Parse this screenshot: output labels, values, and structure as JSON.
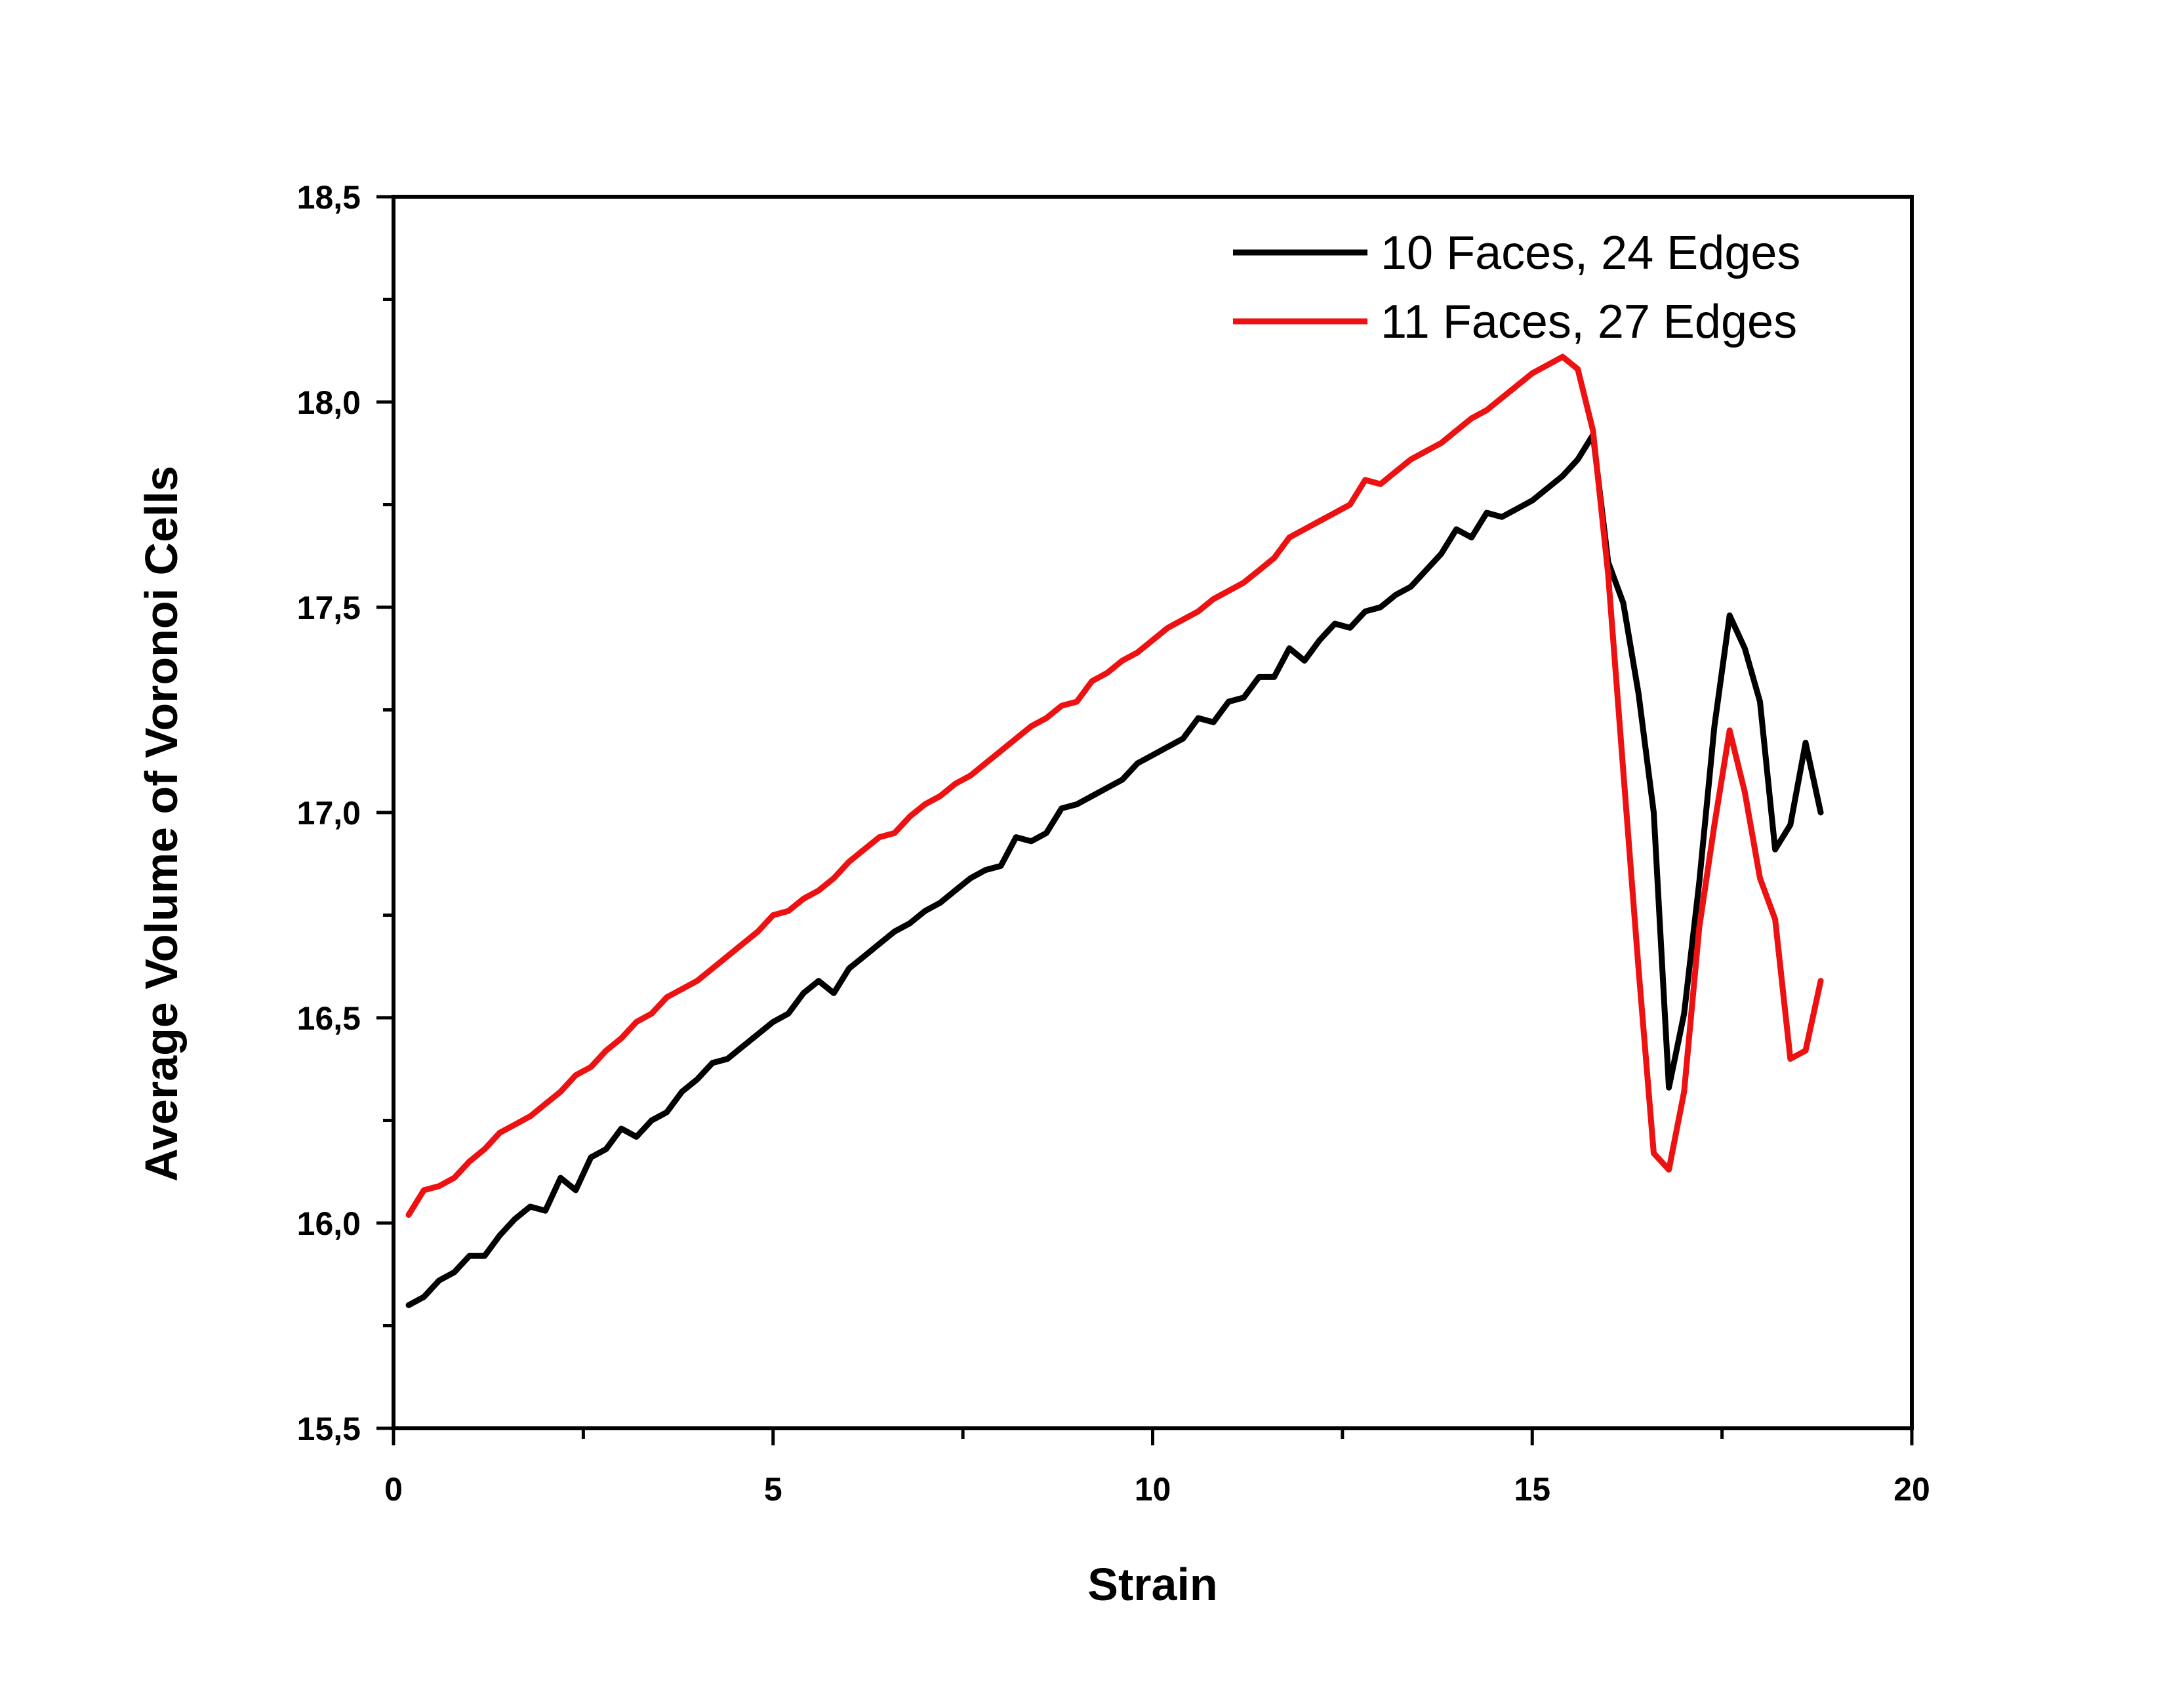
{
  "chart_data": {
    "type": "line",
    "title": "",
    "xlabel": "Strain",
    "ylabel": "Average Volume of Voronoi Cells",
    "xlim": [
      0,
      20
    ],
    "ylim": [
      15.5,
      18.5
    ],
    "xticks": [
      0,
      5,
      10,
      15,
      20
    ],
    "xtick_labels": [
      "0",
      "5",
      "10",
      "15",
      "20"
    ],
    "yticks": [
      15.5,
      16.0,
      16.5,
      17.0,
      17.5,
      18.0,
      18.5
    ],
    "ytick_labels": [
      "15,5",
      "16,0",
      "16,5",
      "17,0",
      "17,5",
      "18,0",
      "18,5"
    ],
    "grid": false,
    "legend_position": "top-right",
    "series": [
      {
        "name": "10 Faces, 24 Edges",
        "color": "#000000",
        "x": [
          0.2,
          0.4,
          0.6,
          0.8,
          1.0,
          1.2,
          1.4,
          1.6,
          1.8,
          2.0,
          2.2,
          2.4,
          2.6,
          2.8,
          3.0,
          3.2,
          3.4,
          3.6,
          3.8,
          4.0,
          4.2,
          4.4,
          4.6,
          4.8,
          5.0,
          5.2,
          5.4,
          5.6,
          5.8,
          6.0,
          6.2,
          6.4,
          6.6,
          6.8,
          7.0,
          7.2,
          7.4,
          7.6,
          7.8,
          8.0,
          8.2,
          8.4,
          8.6,
          8.8,
          9.0,
          9.2,
          9.4,
          9.6,
          9.8,
          10.0,
          10.2,
          10.4,
          10.6,
          10.8,
          11.0,
          11.2,
          11.4,
          11.6,
          11.8,
          12.0,
          12.2,
          12.4,
          12.6,
          12.8,
          13.0,
          13.2,
          13.4,
          13.6,
          13.8,
          14.0,
          14.2,
          14.4,
          14.6,
          14.8,
          15.0,
          15.2,
          15.4,
          15.6,
          15.8,
          16.0,
          16.2,
          16.4,
          16.6,
          16.8,
          17.0,
          17.2,
          17.4,
          17.6,
          17.8,
          18.0,
          18.2,
          18.4,
          18.6,
          18.8
        ],
        "y": [
          15.8,
          15.82,
          15.86,
          15.88,
          15.92,
          15.92,
          15.97,
          16.01,
          16.04,
          16.03,
          16.11,
          16.08,
          16.16,
          16.18,
          16.23,
          16.21,
          16.25,
          16.27,
          16.32,
          16.35,
          16.39,
          16.4,
          16.43,
          16.46,
          16.49,
          16.51,
          16.56,
          16.59,
          16.56,
          16.62,
          16.65,
          16.68,
          16.71,
          16.73,
          16.76,
          16.78,
          16.81,
          16.84,
          16.86,
          16.87,
          16.94,
          16.93,
          16.95,
          17.01,
          17.02,
          17.04,
          17.06,
          17.08,
          17.12,
          17.14,
          17.16,
          17.18,
          17.23,
          17.22,
          17.27,
          17.28,
          17.33,
          17.33,
          17.4,
          17.37,
          17.42,
          17.46,
          17.45,
          17.49,
          17.5,
          17.53,
          17.55,
          17.59,
          17.63,
          17.69,
          17.67,
          17.73,
          17.72,
          17.74,
          17.76,
          17.79,
          17.82,
          17.86,
          17.92,
          17.61,
          17.51,
          17.29,
          17.0,
          16.33,
          16.51,
          16.83,
          17.21,
          17.48,
          17.4,
          17.27,
          16.91,
          16.97,
          17.17,
          17.0
        ]
      },
      {
        "name": "11 Faces, 27 Edges",
        "color": "#ee1111",
        "x": [
          0.2,
          0.4,
          0.6,
          0.8,
          1.0,
          1.2,
          1.4,
          1.6,
          1.8,
          2.0,
          2.2,
          2.4,
          2.6,
          2.8,
          3.0,
          3.2,
          3.4,
          3.6,
          3.8,
          4.0,
          4.2,
          4.4,
          4.6,
          4.8,
          5.0,
          5.2,
          5.4,
          5.6,
          5.8,
          6.0,
          6.2,
          6.4,
          6.6,
          6.8,
          7.0,
          7.2,
          7.4,
          7.6,
          7.8,
          8.0,
          8.2,
          8.4,
          8.6,
          8.8,
          9.0,
          9.2,
          9.4,
          9.6,
          9.8,
          10.0,
          10.2,
          10.4,
          10.6,
          10.8,
          11.0,
          11.2,
          11.4,
          11.6,
          11.8,
          12.0,
          12.2,
          12.4,
          12.6,
          12.8,
          13.0,
          13.2,
          13.4,
          13.6,
          13.8,
          14.0,
          14.2,
          14.4,
          14.6,
          14.8,
          15.0,
          15.2,
          15.4,
          15.6,
          15.8,
          16.0,
          16.2,
          16.4,
          16.6,
          16.8,
          17.0,
          17.2,
          17.4,
          17.6,
          17.8,
          18.0,
          18.2,
          18.4,
          18.6,
          18.8
        ],
        "y": [
          16.02,
          16.08,
          16.09,
          16.11,
          16.15,
          16.18,
          16.22,
          16.24,
          16.26,
          16.29,
          16.32,
          16.36,
          16.38,
          16.42,
          16.45,
          16.49,
          16.51,
          16.55,
          16.57,
          16.59,
          16.62,
          16.65,
          16.68,
          16.71,
          16.75,
          16.76,
          16.79,
          16.81,
          16.84,
          16.88,
          16.91,
          16.94,
          16.95,
          16.99,
          17.02,
          17.04,
          17.07,
          17.09,
          17.12,
          17.15,
          17.18,
          17.21,
          17.23,
          17.26,
          17.27,
          17.32,
          17.34,
          17.37,
          17.39,
          17.42,
          17.45,
          17.47,
          17.49,
          17.52,
          17.54,
          17.56,
          17.59,
          17.62,
          17.67,
          17.69,
          17.71,
          17.73,
          17.75,
          17.81,
          17.8,
          17.83,
          17.86,
          17.88,
          17.9,
          17.93,
          17.96,
          17.98,
          18.01,
          18.04,
          18.07,
          18.09,
          18.11,
          18.08,
          17.93,
          17.58,
          17.1,
          16.62,
          16.17,
          16.13,
          16.32,
          16.72,
          16.97,
          17.2,
          17.05,
          16.84,
          16.74,
          16.4,
          16.42,
          16.59
        ]
      }
    ]
  }
}
